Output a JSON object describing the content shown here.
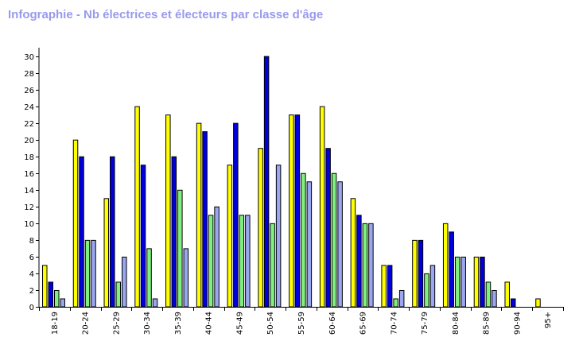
{
  "chart_data": {
    "type": "bar",
    "title": "Infographie - Nb électrices et électeurs par classe d'âge",
    "xlabel": "",
    "ylabel": "",
    "ylim": [
      0,
      31
    ],
    "yticks": [
      0,
      2,
      4,
      6,
      8,
      10,
      12,
      14,
      16,
      18,
      20,
      22,
      24,
      26,
      28,
      30
    ],
    "grid": false,
    "legend": "none",
    "categories": [
      "18-19",
      "20-24",
      "25-29",
      "30-34",
      "35-39",
      "40-44",
      "45-49",
      "50-54",
      "55-59",
      "60-64",
      "65-69",
      "70-74",
      "75-79",
      "80-84",
      "85-89",
      "90-94",
      "95+"
    ],
    "series": [
      {
        "color": "#ffff00",
        "values": [
          5,
          20,
          13,
          24,
          23,
          22,
          17,
          19,
          23,
          24,
          13,
          5,
          8,
          10,
          6,
          3,
          1
        ]
      },
      {
        "color": "#0000dd",
        "values": [
          3,
          18,
          18,
          17,
          18,
          21,
          22,
          30,
          23,
          19,
          11,
          5,
          8,
          9,
          6,
          1,
          0
        ]
      },
      {
        "color": "#80f080",
        "values": [
          2,
          8,
          3,
          7,
          14,
          11,
          11,
          10,
          16,
          16,
          10,
          1,
          4,
          6,
          3,
          0,
          0
        ]
      },
      {
        "color": "#9aa6f0",
        "values": [
          1,
          8,
          6,
          1,
          7,
          12,
          11,
          17,
          15,
          15,
          10,
          2,
          5,
          6,
          2,
          0,
          0
        ]
      }
    ]
  }
}
